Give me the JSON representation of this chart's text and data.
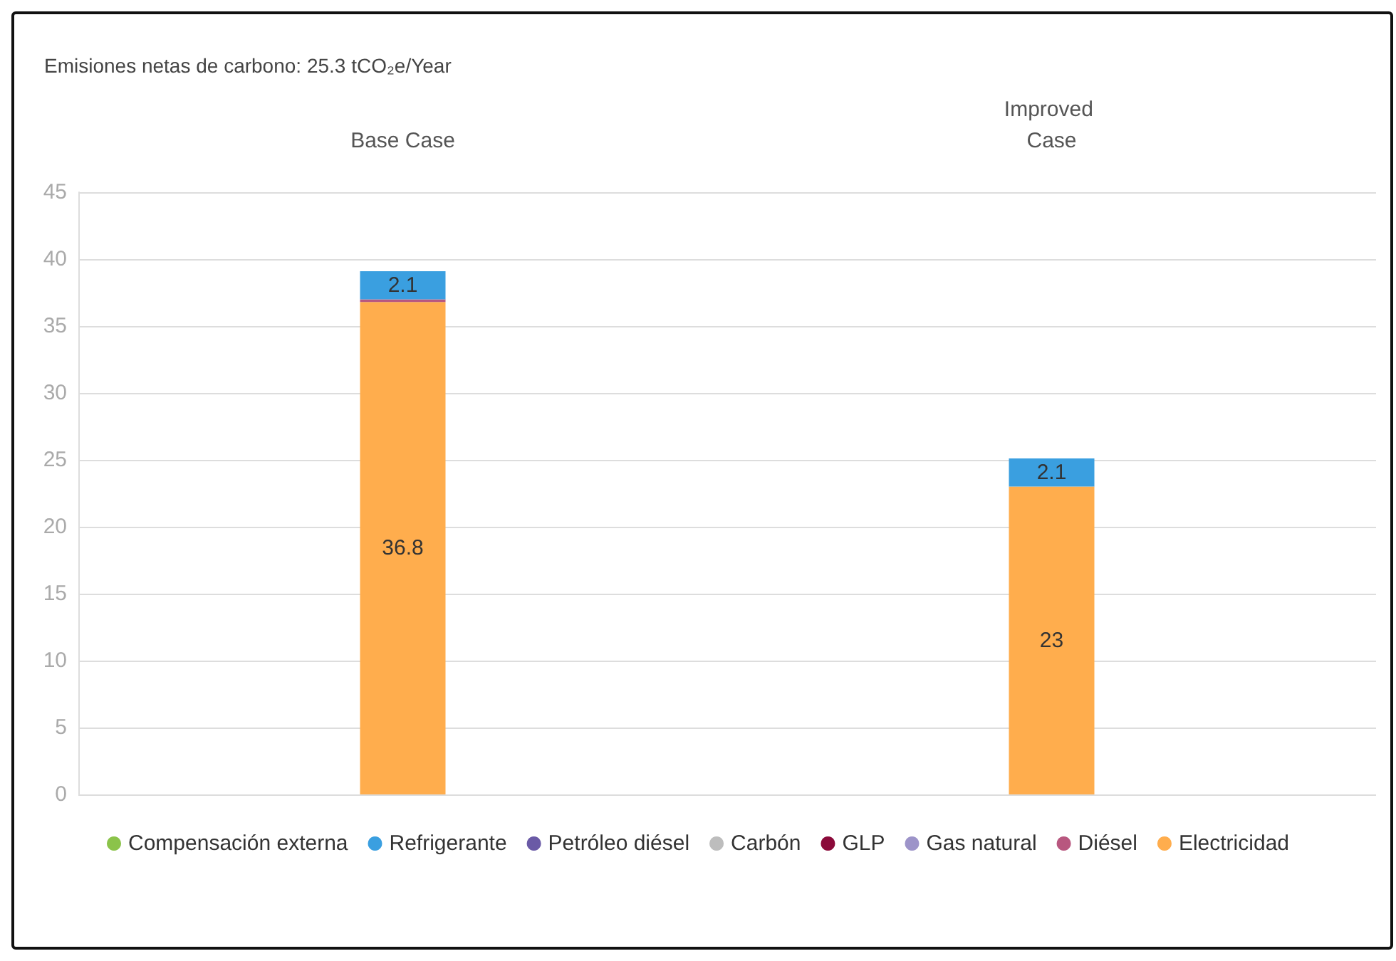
{
  "chart_data": {
    "type": "bar",
    "title": "Emisiones netas de carbono: 25.3 tCO₂e/Year",
    "categories": [
      "Base Case",
      "Improved Case"
    ],
    "stacked": true,
    "ylim": [
      0,
      45
    ],
    "yticks": [
      0,
      5,
      10,
      15,
      20,
      25,
      30,
      35,
      40,
      45
    ],
    "grid": "y",
    "legend": "bottom",
    "series": [
      {
        "name": "Electricidad",
        "color": "#ffad4d",
        "values": [
          36.8,
          23
        ],
        "value_labels": [
          "36.8",
          "23"
        ]
      },
      {
        "name": "Diésel",
        "color": "#b8577f",
        "values": [
          0.2,
          null
        ]
      },
      {
        "name": "Gas natural",
        "color": "#9d94c9",
        "values": [
          null,
          null
        ]
      },
      {
        "name": "GLP",
        "color": "#8b0a3a",
        "values": [
          null,
          null
        ]
      },
      {
        "name": "Carbón",
        "color": "#bdbdbd",
        "values": [
          null,
          null
        ]
      },
      {
        "name": "Petróleo diésel",
        "color": "#6a5aa6",
        "values": [
          null,
          null
        ]
      },
      {
        "name": "Refrigerante",
        "color": "#3a9fe0",
        "values": [
          2.1,
          2.1
        ],
        "value_labels": [
          "2.1",
          "2.1"
        ]
      },
      {
        "name": "Compensación externa",
        "color": "#8bc34a",
        "values": [
          null,
          null
        ]
      }
    ]
  }
}
